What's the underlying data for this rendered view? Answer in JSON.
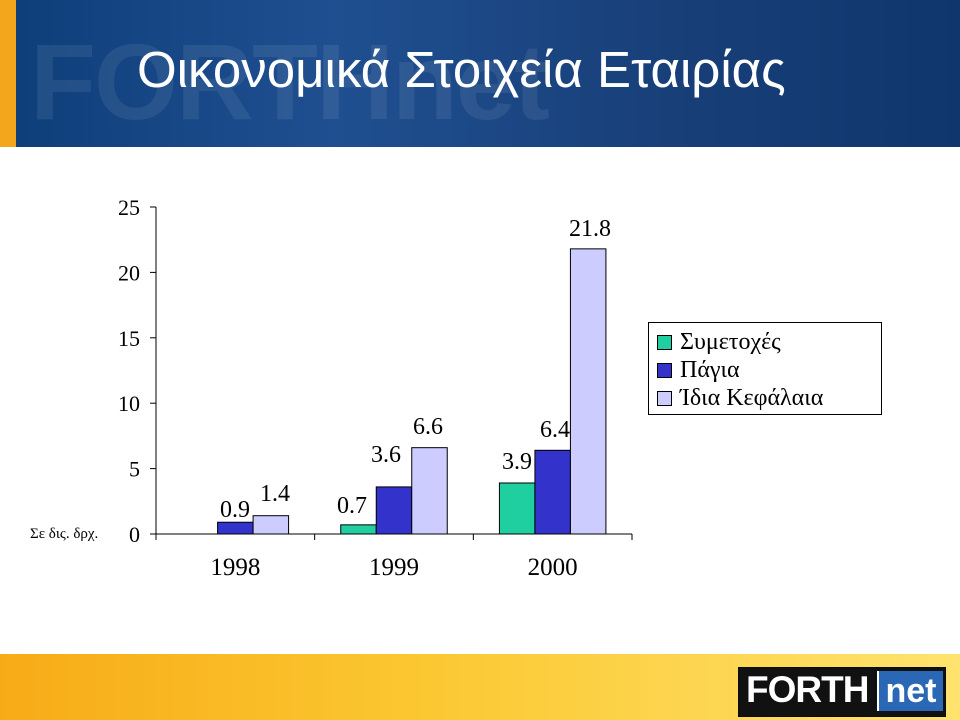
{
  "header": {
    "title": "Οικονομικά Στοιχεία Εταιρίας",
    "watermark": "FORTHnet"
  },
  "footer": {
    "logo_forth": "FORTH",
    "logo_net": "net"
  },
  "colors": {
    "header_bg": "#1a4a8a",
    "footer_bg": "#fbc832",
    "series_1": "#1fcf9f",
    "series_2": "#3333cc",
    "series_3": "#ccccff"
  },
  "chart_data": {
    "type": "bar",
    "unit_label": "Σε δις. δρχ.",
    "categories": [
      "1998",
      "1999",
      "2000"
    ],
    "ylim": [
      0,
      25
    ],
    "yticks": [
      "0",
      "5",
      "10",
      "15",
      "20",
      "25"
    ],
    "grid": false,
    "legend_position": "right",
    "series": [
      {
        "name": "Συμετοχές",
        "values": [
          null,
          0.7,
          3.9
        ],
        "labels": [
          "",
          "0.7",
          "3.9"
        ],
        "color": "#1fcf9f"
      },
      {
        "name": "Πάγια",
        "values": [
          0.9,
          3.6,
          6.4
        ],
        "labels": [
          "0.9",
          "3.6",
          "6.4"
        ],
        "color": "#3333cc"
      },
      {
        "name": "Ίδια Κεφάλαια",
        "values": [
          1.4,
          6.6,
          21.8
        ],
        "labels": [
          "1.4",
          "6.6",
          "21.8"
        ],
        "color": "#ccccff"
      }
    ]
  }
}
